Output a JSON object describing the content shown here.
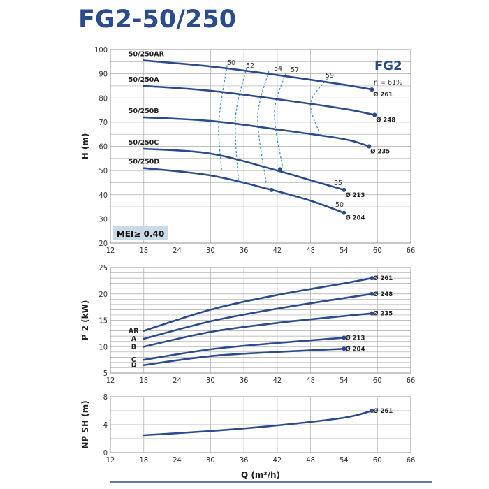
{
  "title": "FG2-50/250",
  "chart_data": [
    {
      "type": "line",
      "name": "head",
      "ylabel": "H (m)",
      "xlim": [
        12,
        66
      ],
      "ylim": [
        20,
        100
      ],
      "x_ticks": [
        "12",
        "18",
        "24",
        "30",
        "36",
        "42",
        "48",
        "54",
        "60",
        "66"
      ],
      "y_ticks": [
        "20",
        "30",
        "40",
        "50",
        "60",
        "70",
        "80",
        "90",
        "100"
      ],
      "series_label": "FG2",
      "badge": "MEI≥ 0.40",
      "series": [
        {
          "name": "50/250AR",
          "diameter": "Ø 261",
          "x": [
            18,
            30,
            42,
            54,
            59
          ],
          "y": [
            95.5,
            93,
            89.5,
            85.5,
            83.5
          ]
        },
        {
          "name": "50/250A",
          "diameter": "Ø 248",
          "x": [
            18,
            30,
            42,
            54,
            59.5
          ],
          "y": [
            85,
            83,
            79.5,
            75.5,
            73
          ]
        },
        {
          "name": "50/250B",
          "diameter": "Ø 235",
          "x": [
            18,
            30,
            42,
            54,
            58.5
          ],
          "y": [
            72,
            70.5,
            67,
            63,
            60
          ]
        },
        {
          "name": "50/250C",
          "diameter": "Ø 213",
          "x": [
            18,
            30,
            42,
            48,
            54
          ],
          "y": [
            59,
            57,
            50,
            46,
            42
          ]
        },
        {
          "name": "50/250D",
          "diameter": "Ø 204",
          "x": [
            18,
            30,
            41,
            48,
            54
          ],
          "y": [
            51,
            48,
            42,
            37.5,
            32.5
          ]
        }
      ],
      "markers": [
        {
          "x": 59,
          "y": 83.5
        },
        {
          "x": 59.5,
          "y": 73
        },
        {
          "x": 58.5,
          "y": 60
        },
        {
          "x": 42.5,
          "y": 50.5
        },
        {
          "x": 41,
          "y": 42
        }
      ],
      "efficiency_contours": [
        {
          "label": "η = 61%",
          "points": []
        },
        {
          "label": "50",
          "points": [
            [
              33,
              93.5
            ],
            [
              31.5,
              70
            ],
            [
              32,
              50
            ]
          ]
        },
        {
          "label": "52",
          "points": [
            [
              36.5,
              92.5
            ],
            [
              34.5,
              72
            ],
            [
              35,
              46
            ]
          ]
        },
        {
          "label": "54",
          "points": [
            [
              40.5,
              91
            ],
            [
              38.5,
              72
            ],
            [
              40,
              45
            ]
          ]
        },
        {
          "label": "57",
          "points": [
            [
              43.5,
              90
            ],
            [
              41.5,
              74
            ],
            [
              43,
              51
            ]
          ]
        },
        {
          "label": "59",
          "points": [
            [
              51,
              88
            ],
            [
              48,
              78
            ],
            [
              49.5,
              66
            ]
          ]
        },
        {
          "label": "55",
          "points": []
        },
        {
          "label": "50",
          "points": []
        }
      ]
    },
    {
      "type": "line",
      "name": "power",
      "ylabel": "P 2 (kW)",
      "xlim": [
        12,
        66
      ],
      "ylim": [
        5,
        25
      ],
      "x_ticks": [
        "12",
        "18",
        "24",
        "30",
        "36",
        "42",
        "48",
        "54",
        "60",
        "66"
      ],
      "y_ticks": [
        "5",
        "10",
        "15",
        "20",
        "25"
      ],
      "series": [
        {
          "name": "AR",
          "diameter": "Ø 261",
          "x": [
            18,
            30,
            42,
            54,
            59
          ],
          "y": [
            13,
            17,
            19.8,
            22,
            23
          ]
        },
        {
          "name": "A",
          "diameter": "Ø 248",
          "x": [
            18,
            30,
            42,
            54,
            59
          ],
          "y": [
            11.5,
            14.8,
            17.2,
            19.2,
            20
          ]
        },
        {
          "name": "B",
          "diameter": "Ø 235",
          "x": [
            18,
            30,
            42,
            54,
            59
          ],
          "y": [
            10,
            12.8,
            14.5,
            15.8,
            16.3
          ]
        },
        {
          "name": "C",
          "diameter": "Ø 213",
          "x": [
            18,
            30,
            42,
            54
          ],
          "y": [
            7.5,
            9.5,
            10.7,
            11.7
          ]
        },
        {
          "name": "D",
          "diameter": "Ø 204",
          "x": [
            18,
            30,
            42,
            54
          ],
          "y": [
            6.5,
            8.2,
            9.0,
            9.6
          ]
        }
      ]
    },
    {
      "type": "line",
      "name": "npsh",
      "ylabel": "NP SH (m)",
      "xlabel": "Q (m³/h)",
      "xlim": [
        12,
        66
      ],
      "ylim": [
        0,
        8
      ],
      "x_ticks": [
        "12",
        "18",
        "24",
        "30",
        "36",
        "42",
        "48",
        "54",
        "60",
        "66"
      ],
      "y_ticks": [
        "0",
        "4",
        "8"
      ],
      "series": [
        {
          "name": "",
          "diameter": "Ø 261",
          "x": [
            18,
            30,
            42,
            54,
            59
          ],
          "y": [
            2.5,
            3.1,
            3.9,
            5.0,
            6.0
          ]
        }
      ]
    }
  ],
  "colors": {
    "curve": "#2b4c8c",
    "efficiency": "#3a8fd4",
    "title": "#2b4c8c",
    "badge_bg": "#c9d9e6"
  }
}
